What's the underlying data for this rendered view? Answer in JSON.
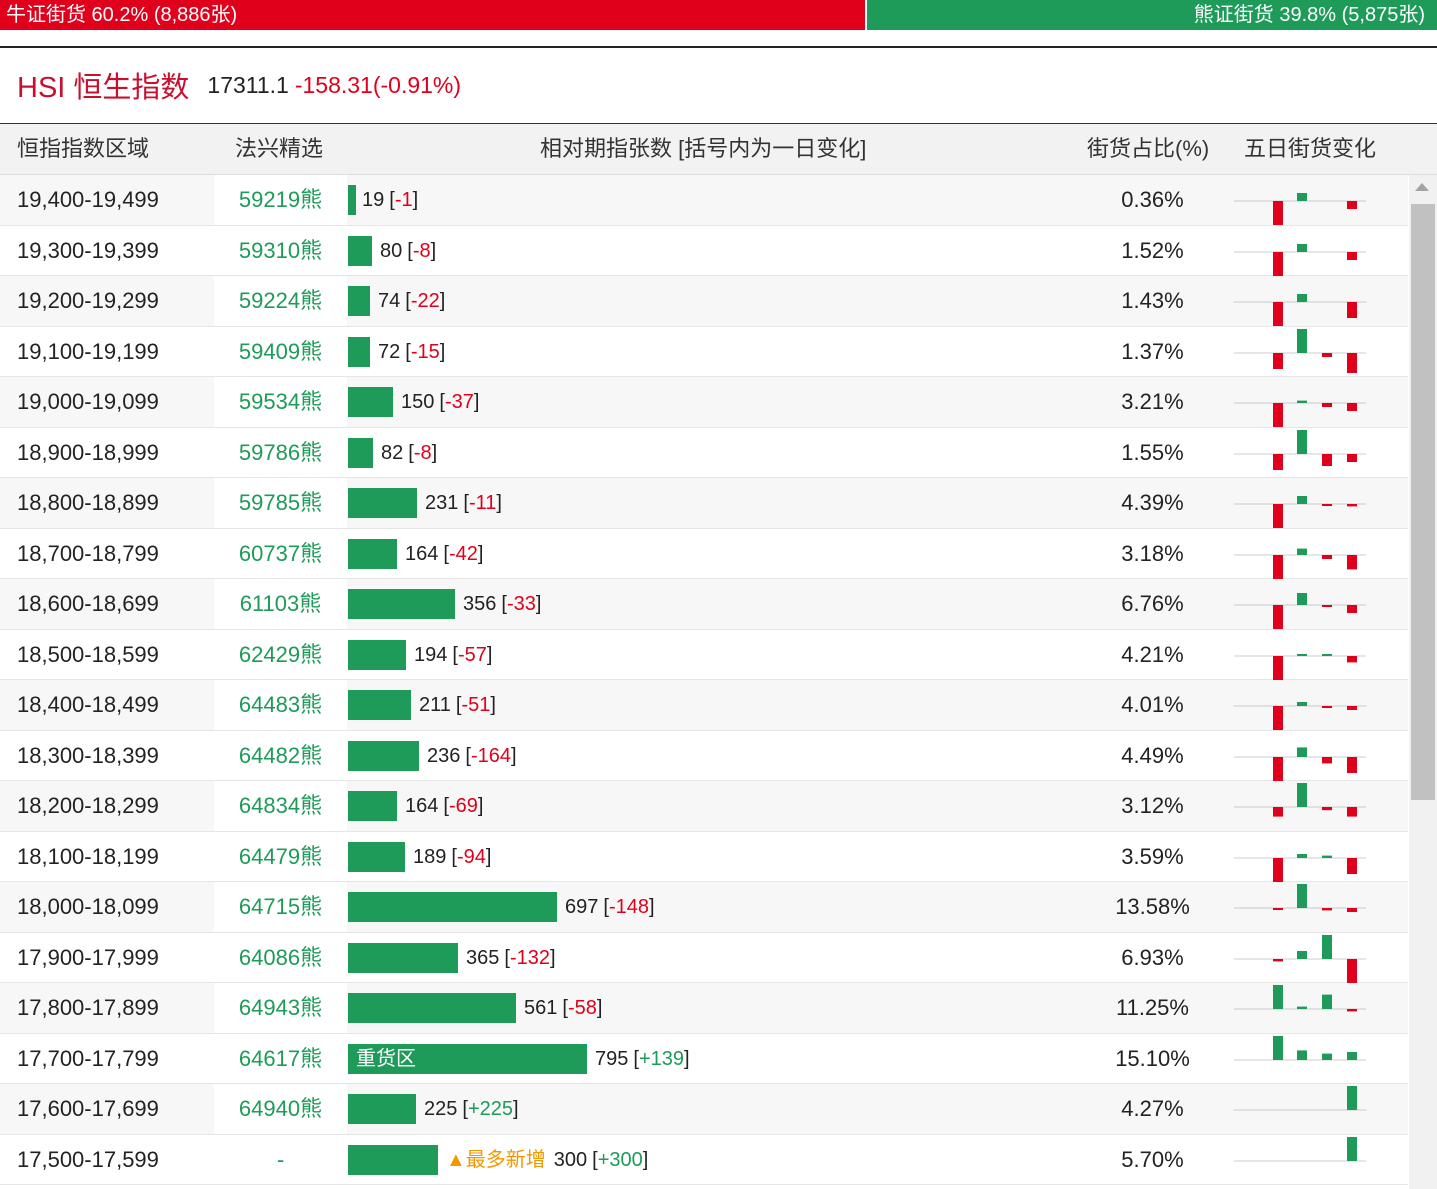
{
  "ratio": {
    "bull_text": "牛证街货 60.2% (8,886张)",
    "bear_text": "熊证街货 39.8% (5,875张)",
    "bull_share": 0.602,
    "bull_color": "#e0001b",
    "bear_color": "#1e9b58"
  },
  "index": {
    "name": "HSI 恒生指数",
    "value": "17311.1",
    "change": "-158.31(-0.91%)"
  },
  "headers": {
    "range": "恒指指数区域",
    "pick": "法兴精选",
    "count": "相对期指张数 [括号内为一日变化]",
    "pct": "街货占比(%)",
    "trend": "五日街货变化"
  },
  "colors": {
    "up": "#1e9b58",
    "down": "#e0001b",
    "highlight": "#f39800"
  },
  "rows": [
    {
      "range": "19,400-19,499",
      "code": "59219熊",
      "count": "19",
      "change": "-1",
      "pct": "0.36%",
      "count_value": 19,
      "tag": "",
      "spark": [
        -3,
        1,
        0,
        -1
      ]
    },
    {
      "range": "19,300-19,399",
      "code": "59310熊",
      "count": "80",
      "change": "-8",
      "pct": "1.52%",
      "count_value": 80,
      "tag": "",
      "spark": [
        -3,
        1,
        0,
        -1
      ]
    },
    {
      "range": "19,200-19,299",
      "code": "59224熊",
      "count": "74",
      "change": "-22",
      "pct": "1.43%",
      "count_value": 74,
      "tag": "",
      "spark": [
        -3,
        1,
        0,
        -2
      ]
    },
    {
      "range": "19,100-19,199",
      "code": "59409熊",
      "count": "72",
      "change": "-15",
      "pct": "1.37%",
      "count_value": 72,
      "tag": "",
      "spark": [
        -2,
        3,
        -0.5,
        -2.5
      ]
    },
    {
      "range": "19,000-19,099",
      "code": "59534熊",
      "count": "150",
      "change": "-37",
      "pct": "3.21%",
      "count_value": 150,
      "tag": "",
      "spark": [
        -3,
        0.3,
        -0.5,
        -1
      ]
    },
    {
      "range": "18,900-18,999",
      "code": "59786熊",
      "count": "82",
      "change": "-8",
      "pct": "1.55%",
      "count_value": 82,
      "tag": "",
      "spark": [
        -2,
        3,
        -1.5,
        -1
      ]
    },
    {
      "range": "18,800-18,899",
      "code": "59785熊",
      "count": "231",
      "change": "-11",
      "pct": "4.39%",
      "count_value": 231,
      "tag": "",
      "spark": [
        -3,
        1,
        -0.2,
        -0.3
      ]
    },
    {
      "range": "18,700-18,799",
      "code": "60737熊",
      "count": "164",
      "change": "-42",
      "pct": "3.18%",
      "count_value": 164,
      "tag": "",
      "spark": [
        -3,
        0.8,
        -0.5,
        -1.8
      ]
    },
    {
      "range": "18,600-18,699",
      "code": "61103熊",
      "count": "356",
      "change": "-33",
      "pct": "6.76%",
      "count_value": 356,
      "tag": "",
      "spark": [
        -3,
        1.5,
        -0.2,
        -1
      ]
    },
    {
      "range": "18,500-18,599",
      "code": "62429熊",
      "count": "194",
      "change": "-57",
      "pct": "4.21%",
      "count_value": 194,
      "tag": "",
      "spark": [
        -3,
        0.2,
        0.2,
        -0.8
      ]
    },
    {
      "range": "18,400-18,499",
      "code": "64483熊",
      "count": "211",
      "change": "-51",
      "pct": "4.01%",
      "count_value": 211,
      "tag": "",
      "spark": [
        -3,
        0.5,
        -0.2,
        -0.5
      ]
    },
    {
      "range": "18,300-18,399",
      "code": "64482熊",
      "count": "236",
      "change": "-164",
      "pct": "4.49%",
      "count_value": 236,
      "tag": "",
      "spark": [
        -3,
        1.2,
        -0.8,
        -2
      ]
    },
    {
      "range": "18,200-18,299",
      "code": "64834熊",
      "count": "164",
      "change": "-69",
      "pct": "3.12%",
      "count_value": 164,
      "tag": "",
      "spark": [
        -1.2,
        3,
        -0.4,
        -1.2
      ]
    },
    {
      "range": "18,100-18,199",
      "code": "64479熊",
      "count": "189",
      "change": "-94",
      "pct": "3.59%",
      "count_value": 189,
      "tag": "",
      "spark": [
        -3,
        0.5,
        0.3,
        -2
      ]
    },
    {
      "range": "18,000-18,099",
      "code": "64715熊",
      "count": "697",
      "change": "-148",
      "pct": "13.58%",
      "count_value": 697,
      "tag": "",
      "spark": [
        -0.2,
        3,
        -0.3,
        -0.5
      ]
    },
    {
      "range": "17,900-17,999",
      "code": "64086熊",
      "count": "365",
      "change": "-132",
      "pct": "6.93%",
      "count_value": 365,
      "tag": "",
      "spark": [
        -0.3,
        1,
        3,
        -3
      ]
    },
    {
      "range": "17,800-17,899",
      "code": "64943熊",
      "count": "561",
      "change": "-58",
      "pct": "11.25%",
      "count_value": 561,
      "tag": "",
      "spark": [
        3,
        0.3,
        1.8,
        -0.3
      ]
    },
    {
      "range": "17,700-17,799",
      "code": "64617熊",
      "count": "795",
      "change": "+139",
      "pct": "15.10%",
      "count_value": 795,
      "tag": "重货区",
      "spark": [
        3,
        1.2,
        0.8,
        1
      ]
    },
    {
      "range": "17,600-17,699",
      "code": "64940熊",
      "count": "225",
      "change": "+225",
      "pct": "4.27%",
      "count_value": 225,
      "tag": "",
      "spark": [
        0,
        0,
        0,
        3
      ]
    },
    {
      "range": "17,500-17,599",
      "code": "-",
      "count": "300",
      "change": "+300",
      "pct": "5.70%",
      "count_value": 300,
      "tag": "",
      "highlight": "▲最多新增",
      "spark": [
        0,
        0,
        0,
        3
      ]
    }
  ]
}
